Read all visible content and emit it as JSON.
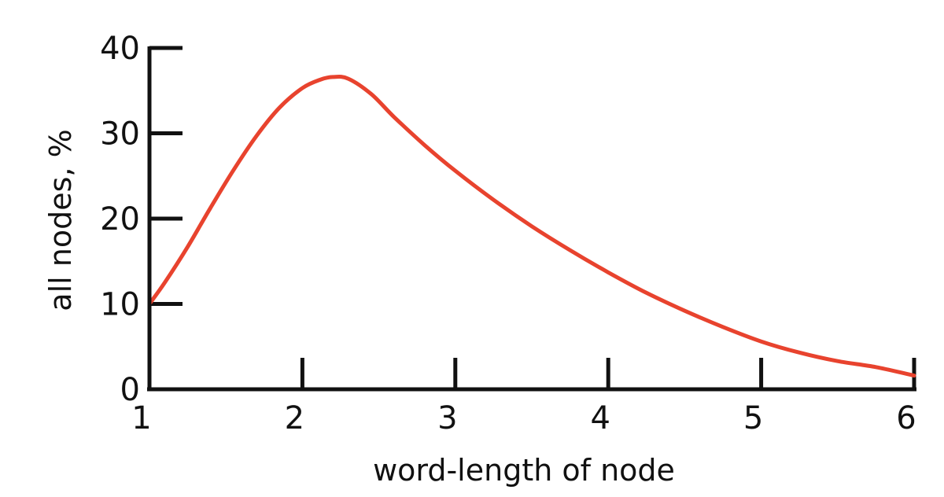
{
  "chart_data": {
    "type": "line",
    "title": "",
    "xlabel": "word-length of node",
    "ylabel": "all nodes, %",
    "xlim": [
      1,
      6
    ],
    "ylim": [
      0,
      40
    ],
    "x_ticks": [
      {
        "value": 1,
        "label": "1"
      },
      {
        "value": 2,
        "label": "2"
      },
      {
        "value": 3,
        "label": "3"
      },
      {
        "value": 4,
        "label": "4"
      },
      {
        "value": 5,
        "label": "5"
      },
      {
        "value": 6,
        "label": "6"
      }
    ],
    "y_ticks": [
      {
        "value": 0,
        "label": "0"
      },
      {
        "value": 10,
        "label": "10"
      },
      {
        "value": 20,
        "label": "20"
      },
      {
        "value": 30,
        "label": "30"
      },
      {
        "value": 40,
        "label": "40"
      }
    ],
    "grid": false,
    "legend": "none",
    "series": [
      {
        "color": "#e8432e",
        "points": [
          {
            "x": 1.0,
            "y": 10.0
          },
          {
            "x": 1.1,
            "y": 12.5
          },
          {
            "x": 1.25,
            "y": 16.7
          },
          {
            "x": 1.4,
            "y": 21.3
          },
          {
            "x": 1.55,
            "y": 25.7
          },
          {
            "x": 1.7,
            "y": 29.7
          },
          {
            "x": 1.85,
            "y": 33.0
          },
          {
            "x": 2.0,
            "y": 35.3
          },
          {
            "x": 2.12,
            "y": 36.3
          },
          {
            "x": 2.2,
            "y": 36.6
          },
          {
            "x": 2.3,
            "y": 36.4
          },
          {
            "x": 2.45,
            "y": 34.6
          },
          {
            "x": 2.6,
            "y": 31.9
          },
          {
            "x": 2.8,
            "y": 28.6
          },
          {
            "x": 3.0,
            "y": 25.6
          },
          {
            "x": 3.25,
            "y": 22.2
          },
          {
            "x": 3.5,
            "y": 19.1
          },
          {
            "x": 3.75,
            "y": 16.3
          },
          {
            "x": 4.0,
            "y": 13.7
          },
          {
            "x": 4.25,
            "y": 11.3
          },
          {
            "x": 4.5,
            "y": 9.2
          },
          {
            "x": 4.75,
            "y": 7.3
          },
          {
            "x": 5.0,
            "y": 5.6
          },
          {
            "x": 5.25,
            "y": 4.3
          },
          {
            "x": 5.5,
            "y": 3.3
          },
          {
            "x": 5.75,
            "y": 2.6
          },
          {
            "x": 6.0,
            "y": 1.6
          }
        ]
      }
    ]
  },
  "colors": {
    "axis": "#111111",
    "line": "#e8432e",
    "background": "#ffffff"
  }
}
